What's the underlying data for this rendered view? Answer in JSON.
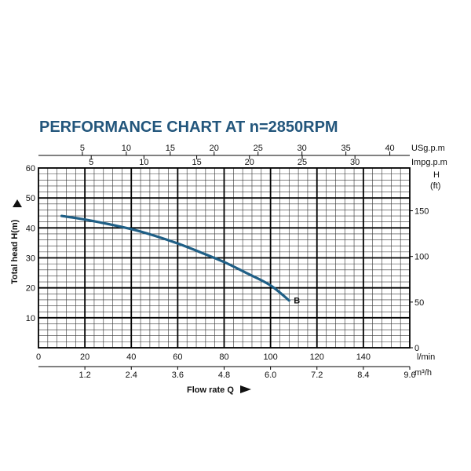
{
  "chart_data": {
    "type": "line",
    "title": "PERFORMANCE CHART AT n=2850RPM",
    "colors": {
      "title": "#23567c",
      "curve": "#1f5f86"
    },
    "xlabel": "Flow rate Q",
    "ylabel": "Total  head H(m)",
    "xlim": [
      0,
      160
    ],
    "ylim": [
      0,
      60
    ],
    "x_ticks": [
      "0",
      "20",
      "40",
      "60",
      "80",
      "100",
      "120",
      "140"
    ],
    "x_unit": "l/min",
    "y_ticks": [
      "10",
      "20",
      "30",
      "40",
      "50",
      "60"
    ],
    "m3h": {
      "ticks": [
        "1.2",
        "2.4",
        "3.6",
        "4.8",
        "6.0",
        "7.2",
        "8.4",
        "9.6"
      ],
      "unit": "m³/h"
    },
    "usgpm": {
      "ticks": [
        "5",
        "10",
        "15",
        "20",
        "25",
        "30",
        "35",
        "40"
      ],
      "unit": "USg.p.m"
    },
    "impgpm": {
      "ticks": [
        "5",
        "10",
        "15",
        "20",
        "25",
        "30"
      ],
      "unit": "Impg.p.m"
    },
    "ft": {
      "ticks": [
        "0",
        "50",
        "100",
        "150"
      ],
      "unit_top": "H",
      "unit_bottom": "(ft)"
    },
    "grid": true,
    "series": [
      {
        "name": "B",
        "x": [
          10,
          20,
          30,
          40,
          50,
          60,
          70,
          80,
          90,
          100,
          108
        ],
        "y": [
          44,
          42.8,
          41.3,
          39.6,
          37.4,
          34.8,
          31.8,
          28.6,
          24.8,
          20.8,
          15.8
        ]
      }
    ]
  }
}
